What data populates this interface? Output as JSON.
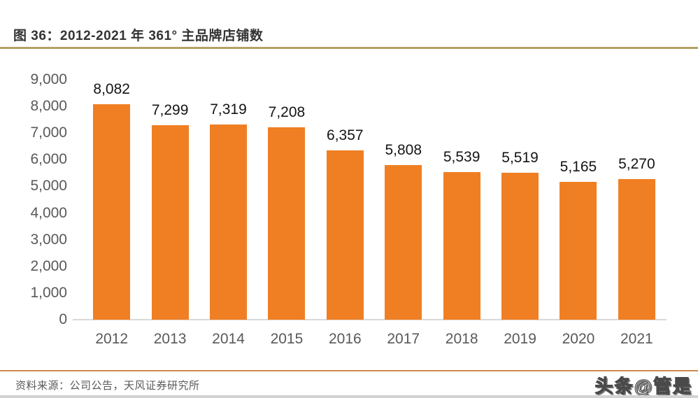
{
  "title": "图 36：2012-2021 年 361° 主品牌店铺数",
  "footer": {
    "source": "资料来源：公司公告，天风证券研究所",
    "watermark": "头条@管是"
  },
  "colors": {
    "bar": "#f07f23",
    "axis_text": "#595959",
    "data_label": "#141414",
    "title_text": "#333333",
    "title_rule": "#b2a265",
    "footer_rule": "#ce8a50",
    "baseline": "#d9d9d9"
  },
  "chart_data": {
    "type": "bar",
    "title": "图 36：2012-2021 年 361° 主品牌店铺数",
    "categories": [
      "2012",
      "2013",
      "2014",
      "2015",
      "2016",
      "2017",
      "2018",
      "2019",
      "2020",
      "2021"
    ],
    "values": [
      8082,
      7299,
      7319,
      7208,
      6357,
      5808,
      5539,
      5519,
      5165,
      5270
    ],
    "value_labels": [
      "8,082",
      "7,299",
      "7,319",
      "7,208",
      "6,357",
      "5,808",
      "5,539",
      "5,519",
      "5,165",
      "5,270"
    ],
    "xlabel": "",
    "ylabel": "",
    "ylim": [
      0,
      9000
    ],
    "ytick_step": 1000,
    "ytick_labels": [
      "0",
      "1,000",
      "2,000",
      "3,000",
      "4,000",
      "5,000",
      "6,000",
      "7,000",
      "8,000",
      "9,000"
    ],
    "grid": false,
    "legend_position": "none",
    "bar_color": "#f07f23"
  }
}
